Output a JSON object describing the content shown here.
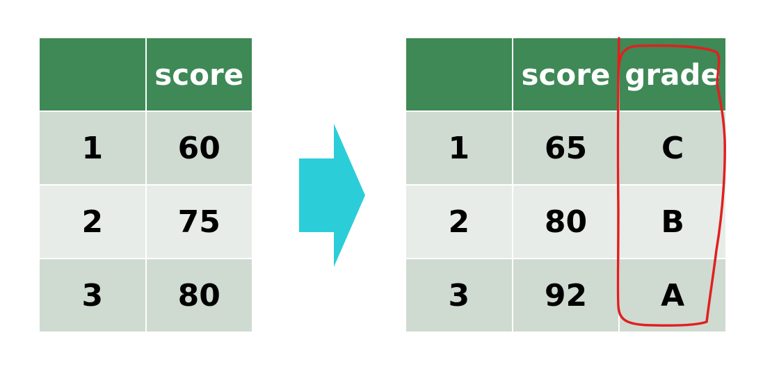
{
  "left_table": {
    "headers": [
      "",
      "score"
    ],
    "rows": [
      {
        "index": "1",
        "score": "60"
      },
      {
        "index": "2",
        "score": "75"
      },
      {
        "index": "3",
        "score": "80"
      }
    ]
  },
  "right_table": {
    "headers": [
      "",
      "score",
      "grade"
    ],
    "rows": [
      {
        "index": "1",
        "score": "65",
        "grade": "C"
      },
      {
        "index": "2",
        "score": "80",
        "grade": "B"
      },
      {
        "index": "3",
        "score": "92",
        "grade": "A"
      }
    ]
  },
  "colors": {
    "header_bg": "#3e8956",
    "row_dark": "#cfdad1",
    "row_light": "#e7ece8",
    "arrow": "#2bcdd9",
    "highlight": "#e02020"
  }
}
